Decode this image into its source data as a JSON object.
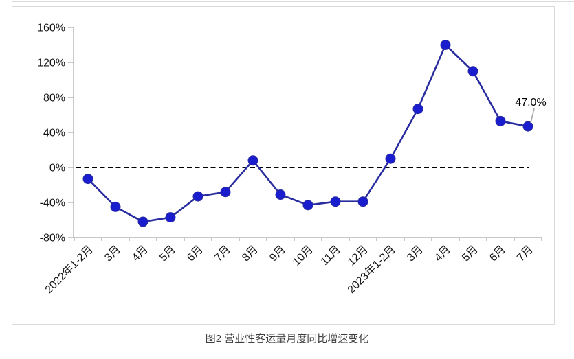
{
  "figure": {
    "caption": "图2 营业性客运量月度同比增速变化",
    "annotation_label": "47.0%"
  },
  "chart_data": {
    "type": "line",
    "title": "图2 营业性客运量月度同比增速变化",
    "categories": [
      "2022年1-2月",
      "3月",
      "4月",
      "5月",
      "6月",
      "7月",
      "8月",
      "9月",
      "10月",
      "11月",
      "12月",
      "2023年1-2月",
      "3月",
      "4月",
      "5月",
      "6月",
      "7月"
    ],
    "series": [
      {
        "name": "营业性客运量月度同比增速",
        "values": [
          -13,
          -45,
          -62,
          -57,
          -33,
          -28,
          8,
          -31,
          -43,
          -39,
          -39,
          10,
          67,
          140,
          110,
          53,
          47
        ]
      }
    ],
    "ylim": [
      -80,
      160
    ],
    "ytick_step": 40,
    "ytick_labels": [
      "160%",
      "120%",
      "80%",
      "40%",
      "0%",
      "-40%",
      "-80%"
    ],
    "xlabel": "",
    "ylabel": "",
    "grid": false,
    "legend": "none",
    "zero_line": "dashed",
    "x_labels_rotation": -45,
    "annotations": [
      {
        "index": 16,
        "text": "47.0%"
      }
    ],
    "colors": {
      "line": "#282c9e",
      "marker": "#1a1dce",
      "axis": "#b3b3b3",
      "zero_line": "#000000",
      "annotation_leader": "#a6a6a6",
      "tick_text": "#161616"
    }
  }
}
